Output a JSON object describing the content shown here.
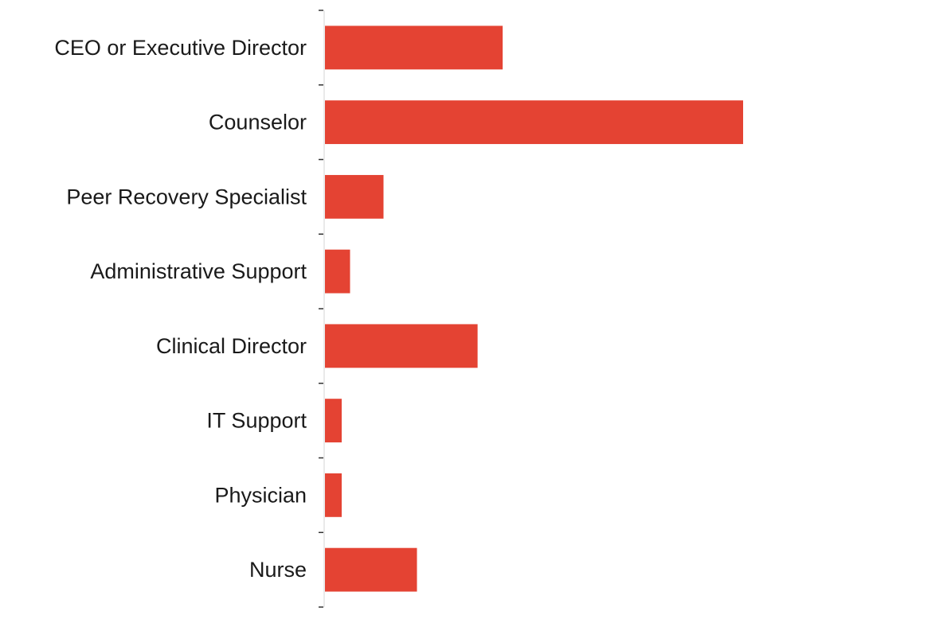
{
  "chart_data": {
    "type": "bar",
    "orientation": "horizontal",
    "title": "",
    "xlabel": "",
    "ylabel": "",
    "categories": [
      "CEO or Executive Director",
      "Counselor",
      "Peer Recovery Specialist",
      "Administrative Support",
      "Clinical Director",
      "IT Support",
      "Physician",
      "Nurse"
    ],
    "values": [
      42.5,
      100,
      14,
      6,
      36.5,
      4,
      4,
      22
    ],
    "xlim": [
      0,
      100
    ],
    "grid": false,
    "bar_color": "#e44333",
    "axis_color": "#333333"
  }
}
